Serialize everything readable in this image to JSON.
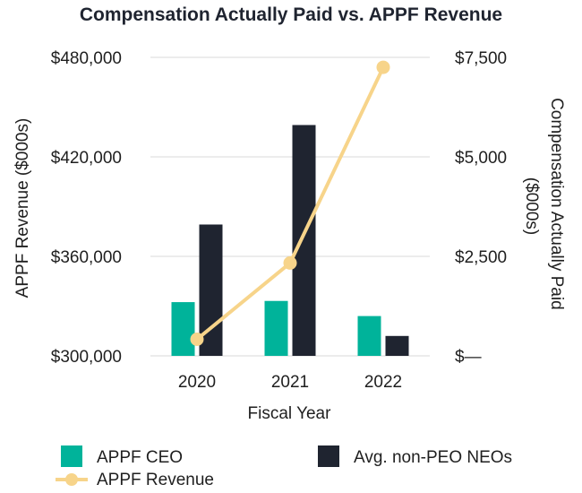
{
  "chart_data": {
    "type": "bar",
    "title": "Compensation Actually Paid vs. APPF Revenue",
    "xlabel": "Fiscal Year",
    "ylabel_left": "APPF Revenue ($000s)",
    "ylabel_right": "Compensation Actually Paid ($000s)",
    "ylabel_right_lines": [
      "Compensation Actually Paid",
      "($000s)"
    ],
    "categories": [
      "2020",
      "2021",
      "2022"
    ],
    "ylim_left": [
      300000,
      480000
    ],
    "ylim_right": [
      0,
      7500
    ],
    "left_ticks": [
      {
        "value": 300000,
        "label": "$300,000"
      },
      {
        "value": 360000,
        "label": "$360,000"
      },
      {
        "value": 420000,
        "label": "$420,000"
      },
      {
        "value": 480000,
        "label": "$480,000"
      }
    ],
    "right_ticks": [
      {
        "value": 0,
        "label": "$—"
      },
      {
        "value": 2500,
        "label": "$2,500"
      },
      {
        "value": 5000,
        "label": "$5,000"
      },
      {
        "value": 7500,
        "label": "$7,500"
      }
    ],
    "grid": true,
    "legend_position": "bottom",
    "series": [
      {
        "name": "APPF CEO",
        "kind": "bar",
        "axis": "right",
        "color": "#00b39a",
        "values": [
          1350,
          1380,
          1000
        ]
      },
      {
        "name": "Avg. non-PEO NEOs",
        "kind": "bar",
        "axis": "right",
        "color": "#1f2430",
        "values": [
          3300,
          5800,
          500
        ]
      },
      {
        "name": "APPF Revenue",
        "kind": "line",
        "axis": "left",
        "color": "#f7d48a",
        "values": [
          310000,
          356000,
          474000
        ]
      }
    ]
  }
}
